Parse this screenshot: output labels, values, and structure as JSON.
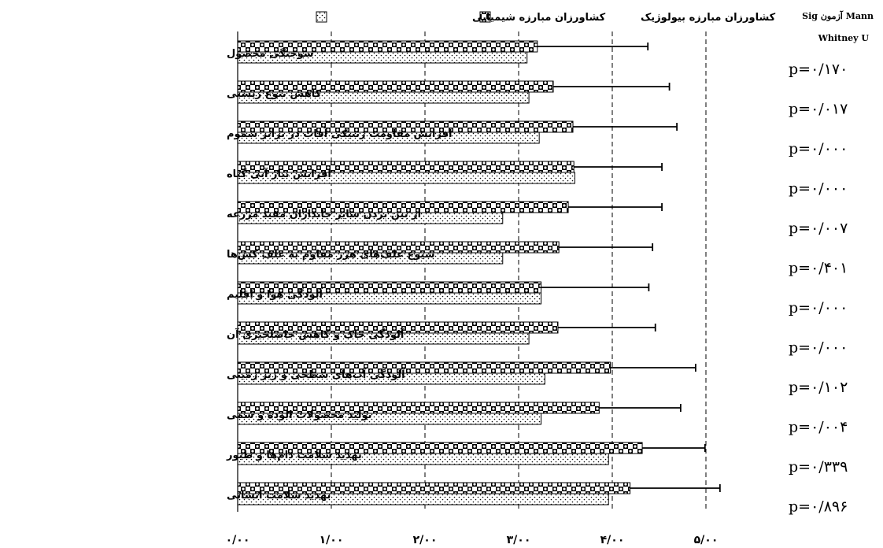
{
  "chart_data": {
    "type": "bar",
    "orientation": "horizontal",
    "categories": [
      "سوختگی محصول",
      "کاهش تنوع زیستی",
      "افزایش مقاومت ژنتیکی آفات در برابر سموم",
      "افزایش  نیاز آبی گیاه",
      "از بین بردن سایر جانداران مفید مزرعه",
      "شیوع علف‌های هرز مقاوم به علف کش‌ها",
      "آلودگی هوا و اقلیم",
      "آلودگی خاک و کاهش حاصلخیزی آن",
      "آلودگی آب‌های سطحی و زیر زمینی",
      "تولید محصولات الوده و سمی",
      "تهدید سلامت دام‌ها و طیور",
      "تهدید سلامت انسانی"
    ],
    "series": [
      {
        "name": "کشاورزان مبارزه بیولوژیک",
        "pattern": "checker",
        "values": [
          3.2,
          3.37,
          3.58,
          3.59,
          3.53,
          3.43,
          3.24,
          3.42,
          3.98,
          3.86,
          4.32,
          4.19
        ],
        "errors": [
          1.18,
          1.24,
          1.11,
          0.94,
          1.0,
          1.0,
          1.15,
          1.04,
          0.91,
          0.87,
          0.67,
          0.96
        ]
      },
      {
        "name": "کشاورزان مبارزه شیمیایی",
        "pattern": "dotted",
        "values": [
          3.09,
          3.11,
          3.22,
          3.6,
          2.83,
          2.83,
          3.24,
          3.11,
          3.28,
          3.24,
          3.96,
          3.96
        ]
      }
    ],
    "xlim": [
      0,
      5.5
    ],
    "xticks": [
      0,
      1,
      2,
      3,
      4,
      5
    ],
    "xtick_labels": [
      "۰/۰۰",
      "۱/۰۰",
      "۲/۰۰",
      "۳/۰۰",
      "۴/۰۰",
      "۵/۰۰"
    ],
    "grid": "vertical-dashed",
    "legend_position": "top"
  },
  "stats": {
    "header_line1": "Sig آزمون Mann",
    "header_line2": "Whitney U",
    "p_values": [
      "p=۰/۱۷۰",
      "p=۰/۰۱۷",
      "p=۰/۰۰۰",
      "p=۰/۰۰۰",
      "p=۰/۰۰۷",
      "p=۰/۴۰۱",
      "p=۰/۰۰۰",
      "p=۰/۰۰۰",
      "p=۰/۱۰۲",
      "p=۰/۰۰۴",
      "p=۰/۳۳۹",
      "p=۰/۸۹۶"
    ]
  },
  "colors": {
    "bar_fill": "#ffffff",
    "pattern_ink": "#000000",
    "axis": "#000000",
    "gridline": "#000000"
  }
}
